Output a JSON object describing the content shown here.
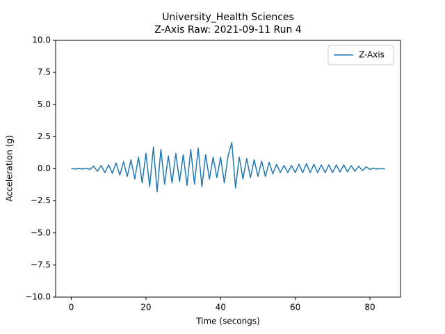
{
  "chart_data": {
    "type": "line",
    "title": "University_Health Sciences",
    "subtitle": "Z-Axis Raw: 2021-09-11 Run 4",
    "x_label": "Time (secongs)",
    "y_label": "Acceleration (g)",
    "x": [
      0,
      1,
      2,
      3,
      4,
      5,
      6,
      7,
      8,
      9,
      10,
      11,
      12,
      13,
      14,
      15,
      16,
      17,
      18,
      19,
      20,
      21,
      22,
      23,
      24,
      25,
      26,
      27,
      28,
      29,
      30,
      31,
      32,
      33,
      34,
      35,
      36,
      37,
      38,
      39,
      40,
      41,
      42,
      43,
      44,
      45,
      46,
      47,
      48,
      49,
      50,
      51,
      52,
      53,
      54,
      55,
      56,
      57,
      58,
      59,
      60,
      61,
      62,
      63,
      64,
      65,
      66,
      67,
      68,
      69,
      70,
      71,
      72,
      73,
      74,
      75,
      76,
      77,
      78,
      79,
      80,
      81,
      82,
      83,
      84
    ],
    "series": [
      {
        "name": "Z-Axis",
        "color": "#1f77b4",
        "values": [
          0.02,
          -0.02,
          0.02,
          -0.02,
          0.03,
          -0.05,
          0.2,
          -0.2,
          0.25,
          -0.3,
          0.3,
          -0.35,
          0.45,
          -0.5,
          0.55,
          -0.6,
          0.7,
          -0.8,
          0.9,
          -1.1,
          1.2,
          -1.4,
          1.7,
          -1.8,
          1.5,
          -1.2,
          1.0,
          -1.1,
          1.2,
          -1.0,
          1.1,
          -1.3,
          1.5,
          -1.2,
          1.6,
          -1.4,
          1.1,
          -0.8,
          0.9,
          -0.7,
          0.9,
          -1.1,
          1.0,
          2.05,
          -1.5,
          0.9,
          -0.8,
          0.8,
          -0.7,
          0.7,
          -0.6,
          0.6,
          -0.6,
          0.5,
          -0.4,
          0.35,
          -0.3,
          0.25,
          -0.3,
          0.25,
          -0.3,
          0.35,
          -0.3,
          0.4,
          -0.3,
          0.35,
          -0.3,
          0.3,
          -0.3,
          0.3,
          -0.3,
          0.3,
          -0.25,
          0.3,
          -0.25,
          0.25,
          -0.2,
          0.2,
          -0.15,
          0.15,
          -0.05,
          0.03,
          -0.02,
          0.02,
          -0.02
        ]
      }
    ],
    "xlim": [
      -4.2,
      88.2
    ],
    "xticks": [
      0,
      20,
      40,
      60,
      80
    ],
    "ylim": [
      -10,
      10
    ],
    "yticks": [
      {
        "value": -10,
        "label": "−10.0"
      },
      {
        "value": -7.5,
        "label": "−7.5"
      },
      {
        "value": -5,
        "label": "−5.0"
      },
      {
        "value": -2.5,
        "label": "−2.5"
      },
      {
        "value": 0,
        "label": "0.0"
      },
      {
        "value": 2.5,
        "label": "2.5"
      },
      {
        "value": 5,
        "label": "5.0"
      },
      {
        "value": 7.5,
        "label": "7.5"
      },
      {
        "value": 10,
        "label": "10.0"
      }
    ],
    "grid": false,
    "legend": "upper right"
  }
}
